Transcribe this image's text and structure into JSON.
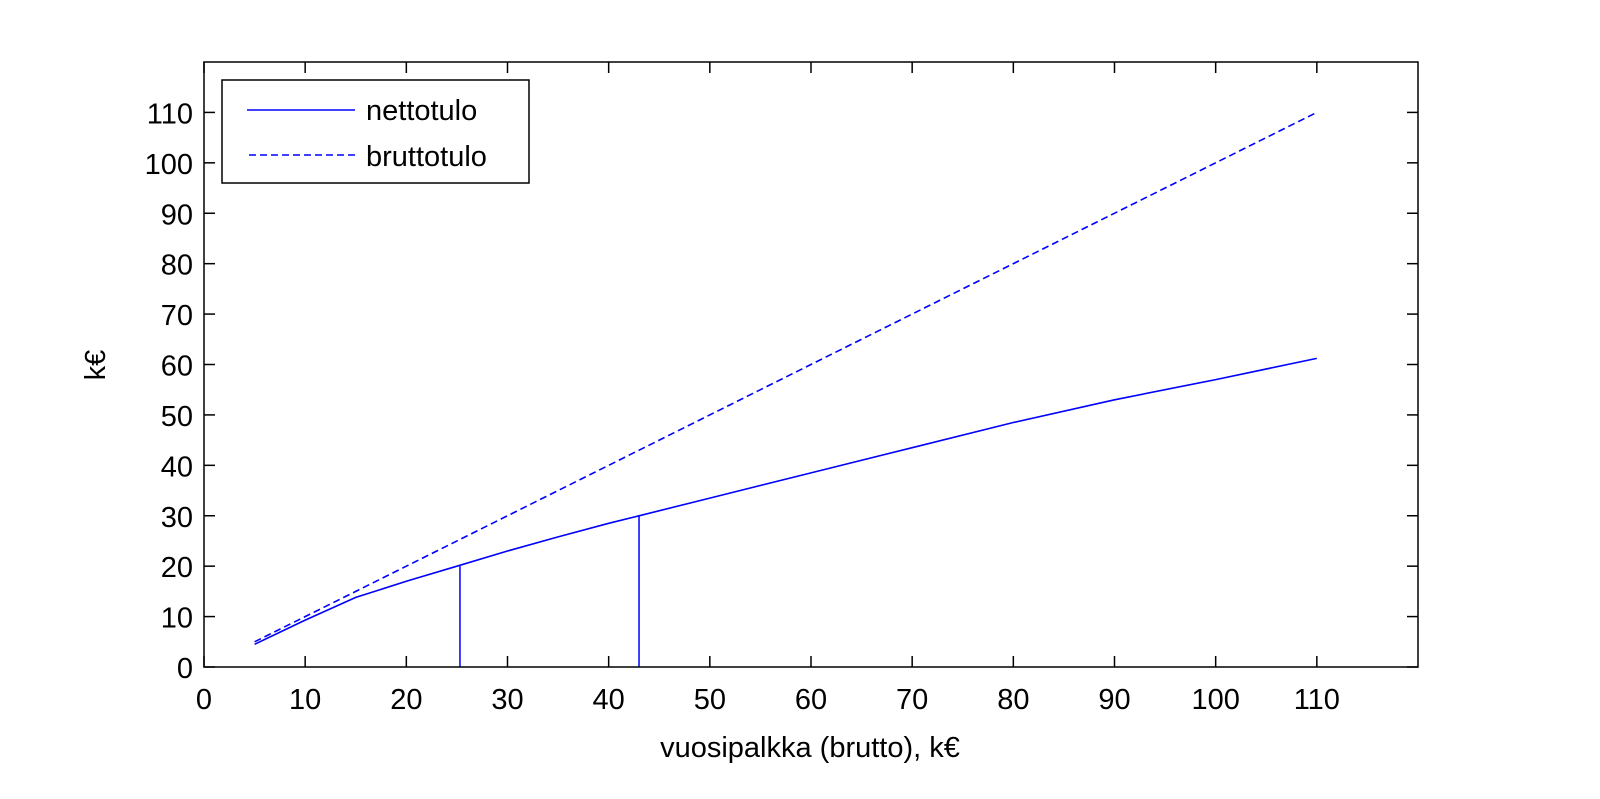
{
  "chart_data": {
    "type": "line",
    "title": "",
    "xlabel": "vuosipalkka (brutto), k€",
    "ylabel": "k€",
    "xlim": [
      0,
      120
    ],
    "ylim": [
      0,
      120
    ],
    "xticks": [
      0,
      10,
      20,
      30,
      40,
      50,
      60,
      70,
      80,
      90,
      100,
      110
    ],
    "yticks": [
      0,
      10,
      20,
      30,
      40,
      50,
      60,
      70,
      80,
      90,
      100,
      110
    ],
    "grid": false,
    "legend_position": "upper-left",
    "series": [
      {
        "name": "nettotulo",
        "style": "solid",
        "color": "#0000ff",
        "x": [
          5,
          10,
          15,
          20,
          25,
          30,
          35,
          40,
          43,
          50,
          60,
          70,
          80,
          90,
          100,
          110
        ],
        "y": [
          4.5,
          9.3,
          13.8,
          17.0,
          20.0,
          23.0,
          25.8,
          28.5,
          30.0,
          33.5,
          38.5,
          43.5,
          48.5,
          53.0,
          57.0,
          61.2
        ]
      },
      {
        "name": "bruttotulo",
        "style": "dashed",
        "color": "#0000ff",
        "x": [
          5,
          110
        ],
        "y": [
          5,
          110
        ]
      }
    ],
    "annotations": [
      {
        "type": "vertical-line",
        "x": 25.3,
        "y_from": 0,
        "y_to": 20,
        "color": "#0000ff"
      },
      {
        "type": "vertical-line",
        "x": 43,
        "y_from": 0,
        "y_to": 30,
        "color": "#0000ff"
      }
    ]
  },
  "legend": {
    "items": [
      {
        "label": "nettotulo",
        "style": "solid"
      },
      {
        "label": "bruttotulo",
        "style": "dashed"
      }
    ]
  },
  "axes": {
    "xlabel": "vuosipalkka (brutto), k€",
    "ylabel": "k€"
  }
}
